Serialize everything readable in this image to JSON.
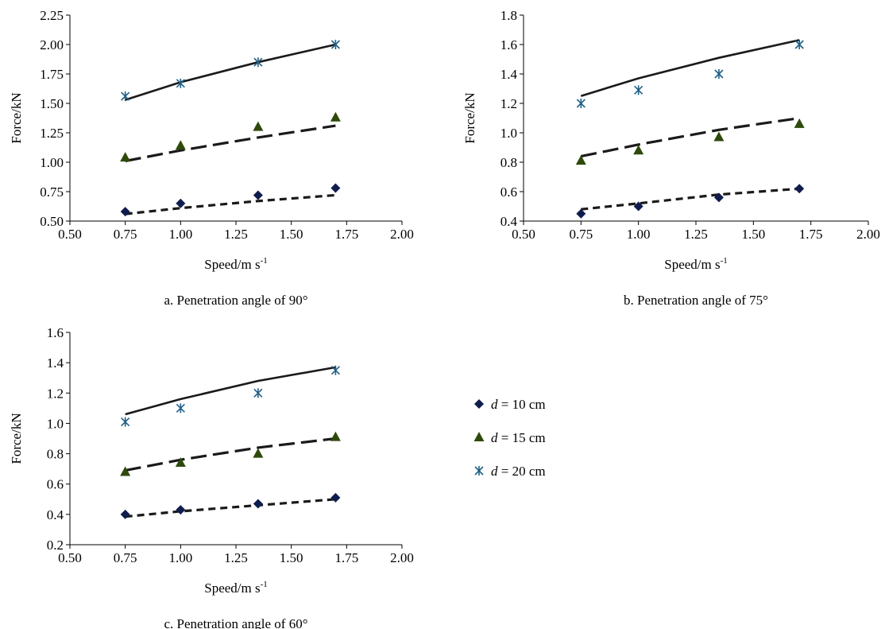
{
  "colors": {
    "d10": "#0f1d4e",
    "d15": "#2e4a0b",
    "d20": "#1f5f86",
    "line": "#1a1a1a"
  },
  "legend": {
    "items": [
      {
        "italic": "d",
        "rest": " = 10 cm",
        "marker": "diamond",
        "color_key": "d10"
      },
      {
        "italic": "d",
        "rest": " = 15 cm",
        "marker": "triangle",
        "color_key": "d15"
      },
      {
        "italic": "d",
        "rest": " = 20 cm",
        "marker": "star",
        "color_key": "d20"
      }
    ]
  },
  "chart_data": [
    {
      "type": "scatter",
      "panel": "a",
      "caption": "a. Penetration angle of 90°",
      "xlabel": "Speed/m s",
      "xlabel_sup": "-1",
      "ylabel": "Force/kN",
      "xlim": [
        0.5,
        2.0
      ],
      "ylim": [
        0.5,
        2.25
      ],
      "xticks": [
        "0.50",
        "0.75",
        "1.00",
        "1.25",
        "1.50",
        "1.75",
        "2.00"
      ],
      "yticks": [
        "0.50",
        "0.75",
        "1.00",
        "1.25",
        "1.50",
        "1.75",
        "2.00",
        "2.25"
      ],
      "x": [
        0.75,
        1.0,
        1.35,
        1.7
      ],
      "series": [
        {
          "name": "d = 10 cm",
          "marker": "diamond",
          "values": [
            0.58,
            0.65,
            0.72,
            0.78
          ],
          "fit": [
            0.56,
            0.61,
            0.67,
            0.72
          ],
          "fit_style": "short-dash"
        },
        {
          "name": "d = 15 cm",
          "marker": "triangle",
          "values": [
            1.04,
            1.14,
            1.3,
            1.38
          ],
          "fit": [
            1.01,
            1.1,
            1.21,
            1.31
          ],
          "fit_style": "long-dash"
        },
        {
          "name": "d = 20 cm",
          "marker": "star",
          "values": [
            1.56,
            1.67,
            1.85,
            2.0
          ],
          "fit": [
            1.53,
            1.68,
            1.85,
            2.0
          ],
          "fit_style": "solid"
        }
      ]
    },
    {
      "type": "scatter",
      "panel": "b",
      "caption": "b. Penetration angle of 75°",
      "xlabel": "Speed/m s",
      "xlabel_sup": "-1",
      "ylabel": "Force/kN",
      "xlim": [
        0.5,
        2.0
      ],
      "ylim": [
        0.4,
        1.8
      ],
      "xticks": [
        "0.50",
        "0.75",
        "1.00",
        "1.25",
        "1.50",
        "1.75",
        "2.00"
      ],
      "yticks": [
        "0.4",
        "0.6",
        "0.8",
        "1.0",
        "1.2",
        "1.4",
        "1.6",
        "1.8"
      ],
      "x": [
        0.75,
        1.0,
        1.35,
        1.7
      ],
      "series": [
        {
          "name": "d = 10 cm",
          "marker": "diamond",
          "values": [
            0.45,
            0.5,
            0.56,
            0.62
          ],
          "fit": [
            0.48,
            0.52,
            0.58,
            0.62
          ],
          "fit_style": "short-dash"
        },
        {
          "name": "d = 15 cm",
          "marker": "triangle",
          "values": [
            0.81,
            0.88,
            0.97,
            1.06
          ],
          "fit": [
            0.84,
            0.92,
            1.02,
            1.1
          ],
          "fit_style": "long-dash"
        },
        {
          "name": "d = 20 cm",
          "marker": "star",
          "values": [
            1.2,
            1.29,
            1.4,
            1.6
          ],
          "fit": [
            1.25,
            1.37,
            1.51,
            1.63
          ],
          "fit_style": "solid"
        }
      ]
    },
    {
      "type": "scatter",
      "panel": "c",
      "caption": "c. Penetration angle of 60°",
      "xlabel": "Speed/m s",
      "xlabel_sup": "-1",
      "ylabel": "Force/kN",
      "xlim": [
        0.5,
        2.0
      ],
      "ylim": [
        0.2,
        1.6
      ],
      "xticks": [
        "0.50",
        "0.75",
        "1.00",
        "1.25",
        "1.50",
        "1.75",
        "2.00"
      ],
      "yticks": [
        "0.2",
        "0.4",
        "0.6",
        "0.8",
        "1.0",
        "1.2",
        "1.4",
        "1.6"
      ],
      "x": [
        0.75,
        1.0,
        1.35,
        1.7
      ],
      "series": [
        {
          "name": "d = 10 cm",
          "marker": "diamond",
          "values": [
            0.4,
            0.43,
            0.47,
            0.51
          ],
          "fit": [
            0.385,
            0.42,
            0.46,
            0.5
          ],
          "fit_style": "short-dash"
        },
        {
          "name": "d = 15 cm",
          "marker": "triangle",
          "values": [
            0.68,
            0.74,
            0.8,
            0.91
          ],
          "fit": [
            0.69,
            0.76,
            0.84,
            0.9
          ],
          "fit_style": "long-dash"
        },
        {
          "name": "d = 20 cm",
          "marker": "star",
          "values": [
            1.01,
            1.1,
            1.2,
            1.35
          ],
          "fit": [
            1.06,
            1.16,
            1.28,
            1.37
          ],
          "fit_style": "solid"
        }
      ]
    }
  ]
}
